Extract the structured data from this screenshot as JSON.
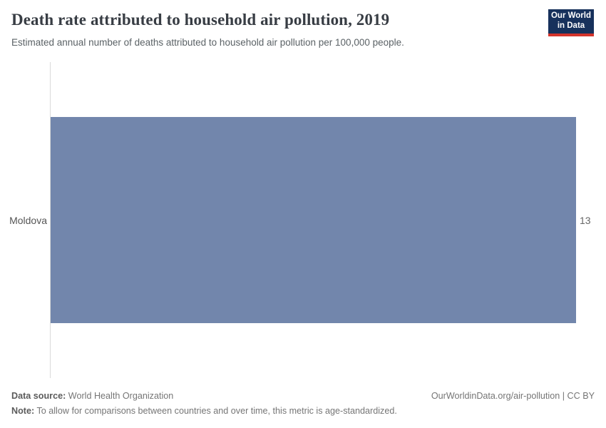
{
  "header": {
    "title": "Death rate attributed to household air pollution, 2019",
    "subtitle": "Estimated annual number of deaths attributed to household air pollution per 100,000 people."
  },
  "logo": {
    "line1": "Our World",
    "line2": "in Data",
    "bg_color": "#17315c",
    "accent_color": "#d3342c"
  },
  "chart_data": {
    "type": "bar",
    "orientation": "horizontal",
    "categories": [
      "Moldova"
    ],
    "values": [
      13
    ],
    "value_labels": [
      "13"
    ],
    "title": "Death rate attributed to household air pollution, 2019",
    "xlabel": "",
    "ylabel": "",
    "xlim": [
      0,
      13
    ],
    "bar_color": "#7286ac",
    "grid": false,
    "legend": false
  },
  "footer": {
    "datasource_label": "Data source:",
    "datasource_value": " World Health Organization",
    "note_label": "Note:",
    "note_value": " To allow for comparisons between countries and over time, this metric is age-standardized.",
    "license": "OurWorldinData.org/air-pollution | CC BY"
  }
}
